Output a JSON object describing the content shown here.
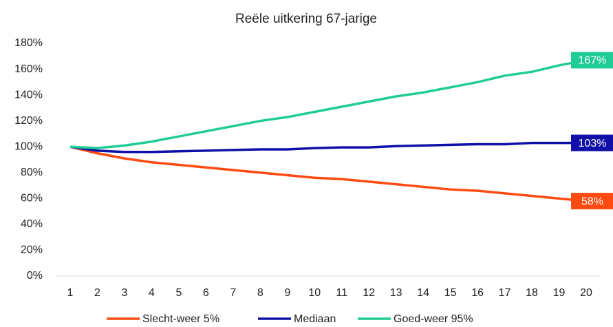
{
  "chart_data": {
    "type": "line",
    "title": "Reële uitkering 67-jarige",
    "categories": [
      "1",
      "2",
      "3",
      "4",
      "5",
      "6",
      "7",
      "8",
      "9",
      "10",
      "11",
      "12",
      "13",
      "14",
      "15",
      "16",
      "17",
      "18",
      "19",
      "20"
    ],
    "series": [
      {
        "name": "Slecht-weer 5%",
        "color": "#ff4a12",
        "values": [
          100,
          95,
          91,
          88,
          86,
          84,
          82,
          80,
          78,
          76,
          75,
          73,
          71,
          69,
          67,
          66,
          64,
          62,
          60,
          58
        ],
        "value_labels": [
          null,
          null,
          null,
          null,
          null,
          null,
          null,
          null,
          null,
          null,
          null,
          null,
          null,
          null,
          null,
          null,
          null,
          null,
          null,
          "58%"
        ]
      },
      {
        "name": "Mediaan",
        "color": "#1010a8",
        "values": [
          100,
          97,
          96,
          96,
          96.5,
          97,
          97.5,
          98,
          98,
          99,
          99.5,
          99.5,
          100.5,
          101,
          101.5,
          102,
          102,
          103,
          103,
          103
        ],
        "value_labels": [
          null,
          null,
          null,
          null,
          null,
          null,
          null,
          null,
          null,
          null,
          null,
          null,
          null,
          null,
          null,
          null,
          null,
          null,
          null,
          "103%"
        ]
      },
      {
        "name": "Goed-weer 95%",
        "color": "#1fcc96",
        "values": [
          100,
          99,
          101,
          104,
          108,
          112,
          116,
          120,
          123,
          127,
          131,
          135,
          139,
          142,
          146,
          150,
          155,
          158,
          163,
          167
        ],
        "value_labels": [
          null,
          null,
          null,
          null,
          null,
          null,
          null,
          null,
          null,
          null,
          null,
          null,
          null,
          null,
          null,
          null,
          null,
          null,
          null,
          "167%"
        ]
      }
    ],
    "ylim": [
      0,
      180
    ],
    "yticks": [
      {
        "value": 0,
        "label": "0%"
      },
      {
        "value": 20,
        "label": "20%"
      },
      {
        "value": 40,
        "label": "40%"
      },
      {
        "value": 60,
        "label": "60%"
      },
      {
        "value": 80,
        "label": "80%"
      },
      {
        "value": 100,
        "label": "100%"
      },
      {
        "value": 120,
        "label": "120%"
      },
      {
        "value": 140,
        "label": "140%"
      },
      {
        "value": 160,
        "label": "160%"
      },
      {
        "value": 180,
        "label": "180%"
      }
    ],
    "grid": false
  }
}
